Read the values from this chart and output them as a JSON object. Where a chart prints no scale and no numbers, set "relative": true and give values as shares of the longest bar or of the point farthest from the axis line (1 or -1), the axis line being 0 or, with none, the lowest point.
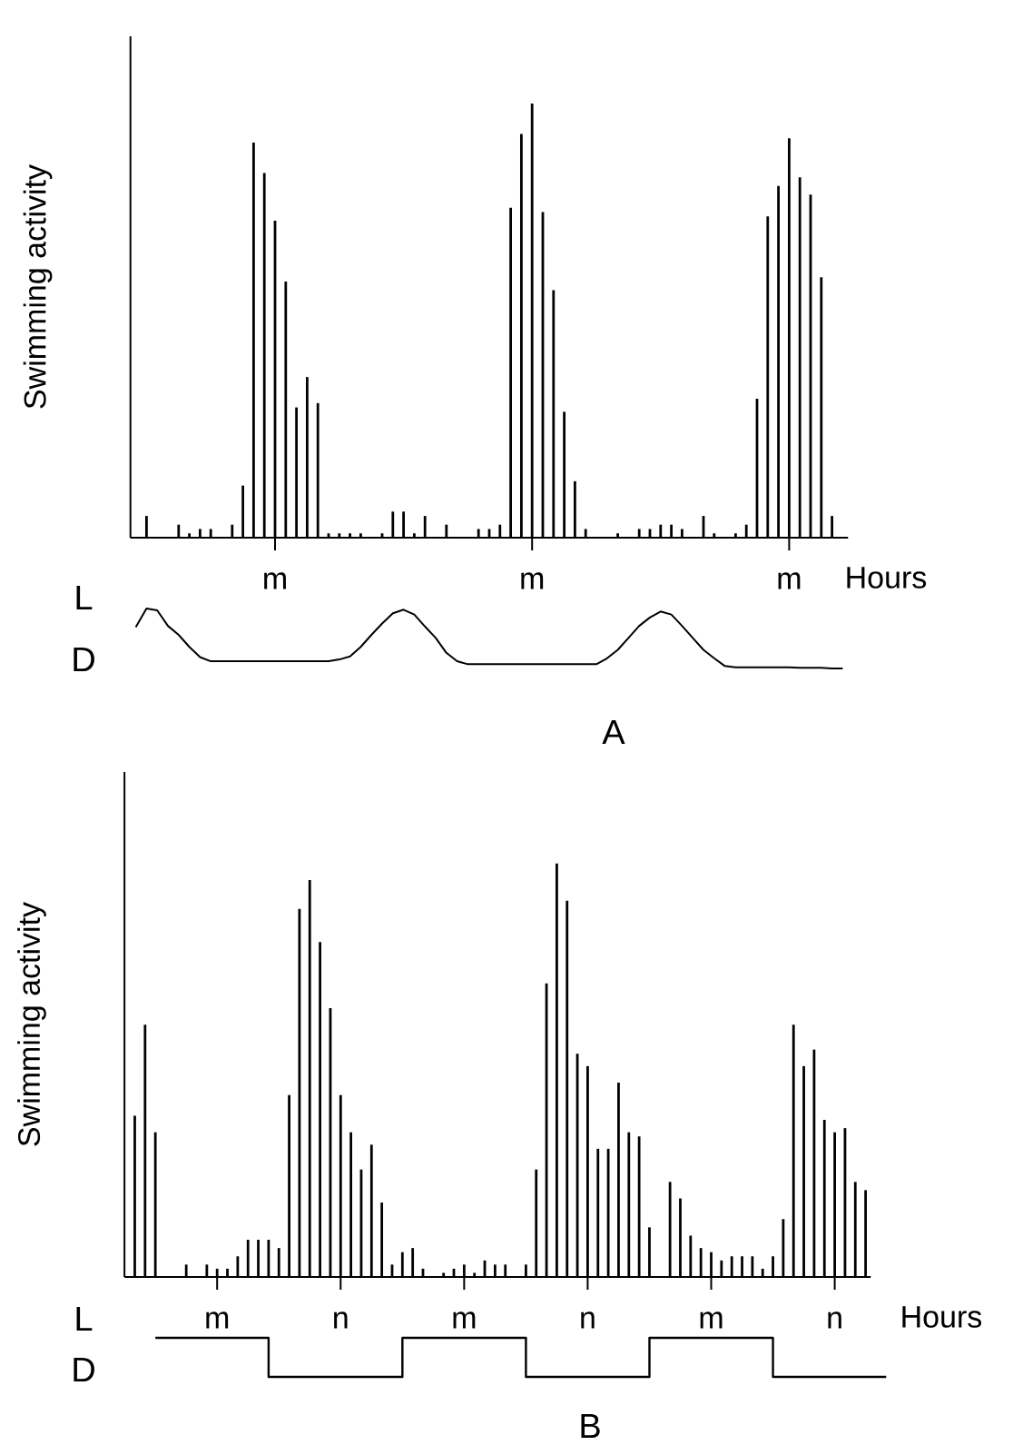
{
  "chart_data": [
    {
      "type": "bar",
      "ylabel": "Swimming activity",
      "xlabel": "Hours",
      "relative": true,
      "color": "#000000",
      "tick_labels": "x",
      "categories": [
        null,
        null,
        null,
        null,
        null,
        null,
        null,
        null,
        null,
        null,
        null,
        null,
        null,
        "m",
        null,
        null,
        null,
        null,
        null,
        null,
        null,
        null,
        null,
        null,
        null,
        null,
        null,
        null,
        null,
        null,
        null,
        null,
        null,
        null,
        null,
        null,
        null,
        "m",
        null,
        null,
        null,
        null,
        null,
        null,
        null,
        null,
        null,
        null,
        null,
        null,
        null,
        null,
        null,
        null,
        null,
        null,
        null,
        null,
        null,
        null,
        null,
        "m",
        null,
        null,
        null,
        null,
        null
      ],
      "values": [
        null,
        0.05,
        null,
        null,
        0.03,
        0.01,
        0.02,
        0.02,
        null,
        0.03,
        0.12,
        0.91,
        0.84,
        0.73,
        0.59,
        0.3,
        0.37,
        0.31,
        0.01,
        0.01,
        0.01,
        0.01,
        null,
        0.01,
        0.06,
        0.06,
        0.01,
        0.05,
        null,
        0.03,
        null,
        null,
        0.02,
        0.02,
        0.03,
        0.76,
        0.93,
        1,
        0.75,
        0.57,
        0.29,
        0.13,
        0.02,
        null,
        null,
        0.01,
        null,
        0.02,
        0.02,
        0.03,
        0.03,
        0.02,
        null,
        0.05,
        0.01,
        null,
        0.01,
        0.03,
        0.32,
        0.74,
        0.81,
        0.92,
        0.83,
        0.79,
        0.6,
        0.05,
        null
      ]
    },
    {
      "type": "line",
      "relative": true,
      "color": "#000000",
      "annotations": [
        "L",
        "D",
        "A"
      ],
      "categories": [
        null,
        null,
        null,
        null,
        null,
        null,
        null,
        null,
        null,
        null,
        null,
        null,
        null,
        null,
        null,
        null,
        null,
        null,
        null,
        null,
        null,
        null,
        null,
        null,
        null,
        null,
        null,
        null,
        null,
        null,
        null,
        null,
        null,
        null,
        null,
        null,
        null,
        null,
        null,
        null,
        null,
        null,
        null,
        null,
        null,
        null,
        null,
        null,
        null,
        null,
        null,
        null,
        null,
        null,
        null,
        null,
        null,
        null,
        null,
        null,
        null,
        null,
        null,
        null,
        null,
        null,
        null
      ],
      "values": [
        0.69,
        1,
        0.97,
        0.71,
        0.56,
        0.36,
        0.19,
        0.12,
        0.12,
        0.12,
        0.12,
        0.12,
        0.12,
        0.12,
        0.12,
        0.12,
        0.12,
        0.12,
        0.12,
        0.15,
        0.2,
        0.36,
        0.56,
        0.75,
        0.92,
        0.98,
        0.9,
        0.7,
        0.51,
        0.26,
        0.12,
        0.07,
        0.07,
        0.07,
        0.07,
        0.07,
        0.07,
        0.07,
        0.07,
        0.07,
        0.07,
        0.07,
        0.07,
        0.07,
        0.17,
        0.31,
        0.51,
        0.71,
        0.85,
        0.95,
        0.9,
        0.71,
        0.51,
        0.31,
        0.17,
        0.04,
        0.02,
        0.02,
        0.02,
        0.02,
        0.02,
        0.02,
        0.01,
        0.01,
        0.01,
        0,
        0
      ]
    },
    {
      "type": "bar",
      "ylabel": "Swimming activity",
      "xlabel": "Hours",
      "relative": true,
      "color": "#000000",
      "tick_labels": "x",
      "categories": [
        null,
        null,
        null,
        null,
        null,
        null,
        null,
        null,
        "m",
        null,
        null,
        null,
        null,
        null,
        null,
        null,
        null,
        null,
        null,
        null,
        "n",
        null,
        null,
        null,
        null,
        null,
        null,
        null,
        null,
        null,
        null,
        null,
        "m",
        null,
        null,
        null,
        null,
        null,
        null,
        null,
        null,
        null,
        null,
        null,
        "n",
        null,
        null,
        null,
        null,
        null,
        null,
        null,
        null,
        null,
        null,
        null,
        "m",
        null,
        null,
        null,
        null,
        null,
        null,
        null,
        null,
        null,
        null,
        null,
        "n",
        null,
        null,
        null
      ],
      "values": [
        0.39,
        0.61,
        0.35,
        null,
        null,
        0.03,
        null,
        0.03,
        0.02,
        0.02,
        0.05,
        0.09,
        0.09,
        0.09,
        0.07,
        0.44,
        0.89,
        0.96,
        0.81,
        0.65,
        0.44,
        0.35,
        0.26,
        0.32,
        0.18,
        0.03,
        0.06,
        0.07,
        0.02,
        null,
        0.01,
        0.02,
        0.03,
        0.01,
        0.04,
        0.03,
        0.03,
        null,
        0.03,
        0.26,
        0.71,
        1,
        0.91,
        0.54,
        0.51,
        0.31,
        0.31,
        0.47,
        0.35,
        0.34,
        0.12,
        null,
        0.23,
        0.19,
        0.1,
        0.07,
        0.06,
        0.04,
        0.05,
        0.05,
        0.05,
        0.02,
        0.05,
        0.14,
        0.61,
        0.51,
        0.55,
        0.38,
        0.35,
        0.36,
        0.23,
        0.21
      ]
    },
    {
      "type": "step",
      "relative": true,
      "color": "#000000",
      "annotations": [
        "L",
        "D",
        "B"
      ],
      "categories": [
        null,
        null,
        null,
        null,
        null,
        null,
        null,
        null,
        null,
        null,
        null,
        null,
        null,
        null,
        null,
        null,
        null,
        null,
        null,
        null,
        null,
        null,
        null,
        null,
        null,
        null,
        null,
        null,
        null,
        null,
        null,
        null,
        null,
        null,
        null,
        null,
        null,
        null,
        null,
        null,
        null,
        null,
        null,
        null,
        null,
        null,
        null,
        null,
        null,
        null,
        null,
        null,
        null,
        null,
        null,
        null,
        null,
        null,
        null,
        null,
        null,
        null,
        null,
        null,
        null,
        null,
        null,
        null,
        null,
        null,
        null,
        null
      ],
      "values": [
        1,
        1,
        1,
        1,
        1,
        1,
        1,
        1,
        1,
        1,
        1,
        0,
        0,
        0,
        0,
        0,
        0,
        0,
        0,
        0,
        0,
        0,
        0,
        0,
        1,
        1,
        1,
        1,
        1,
        1,
        1,
        1,
        1,
        1,
        1,
        1,
        0,
        0,
        0,
        0,
        0,
        0,
        0,
        0,
        0,
        0,
        0,
        0,
        1,
        1,
        1,
        1,
        1,
        1,
        1,
        1,
        1,
        1,
        1,
        1,
        0,
        0,
        0,
        0,
        0,
        0,
        0,
        0,
        0,
        0,
        0,
        0
      ]
    }
  ]
}
